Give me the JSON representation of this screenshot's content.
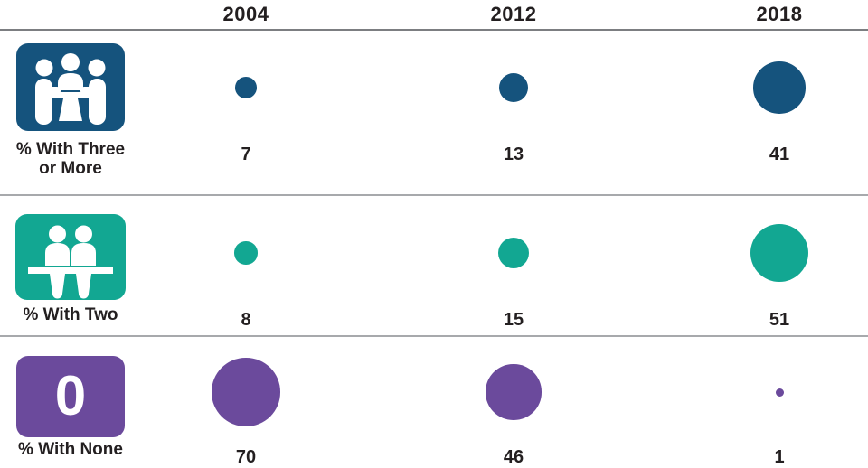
{
  "chart_data": {
    "type": "bubble",
    "columns": [
      "2004",
      "2012",
      "2018"
    ],
    "rows": [
      {
        "label": "% With Three or More",
        "label_lines": [
          "% With Three",
          "or More"
        ],
        "icon": "three-people-meeting-icon",
        "color": "#15537D",
        "values": [
          7,
          13,
          41
        ]
      },
      {
        "label": "% With Two",
        "label_lines": [
          "% With Two"
        ],
        "icon": "two-people-counter-icon",
        "color": "#12A792",
        "values": [
          8,
          15,
          51
        ]
      },
      {
        "label": "% With None",
        "label_lines": [
          "% With None"
        ],
        "icon": "zero-badge-icon",
        "icon_text": "0",
        "color": "#6B4A9C",
        "values": [
          70,
          46,
          1
        ]
      }
    ],
    "layout": {
      "legend": "none",
      "grid": "horizontal gray rules between rows",
      "size_encoding": "circle area proportional to value; diameter_px = 9 * sqrt(value)"
    },
    "text_color": "#231F20",
    "rule_colors": [
      "#7C7E81",
      "#A7A9AC"
    ]
  }
}
